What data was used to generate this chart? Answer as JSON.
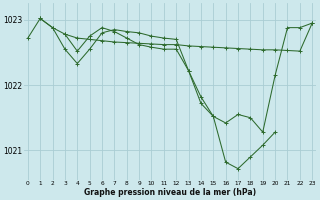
{
  "background_color": "#cde8ec",
  "grid_color": "#aacdd4",
  "line_color": "#2d6a2d",
  "xlabel": "Graphe pression niveau de la mer (hPa)",
  "ylim": [
    1020.55,
    1023.25
  ],
  "xlim": [
    -0.3,
    23.3
  ],
  "yticks": [
    1021,
    1022,
    1023
  ],
  "xticks": [
    0,
    1,
    2,
    3,
    4,
    5,
    6,
    7,
    8,
    9,
    10,
    11,
    12,
    13,
    14,
    15,
    16,
    17,
    18,
    19,
    20,
    21,
    22,
    23
  ],
  "line1_x": [
    0,
    1,
    2,
    3,
    4,
    5,
    6,
    7,
    8,
    9,
    10,
    11,
    12,
    13,
    14,
    15,
    16,
    17,
    18,
    19,
    20,
    21,
    22,
    23
  ],
  "line1_y": [
    1022.72,
    1023.02,
    1022.88,
    1022.78,
    1022.72,
    1022.7,
    1022.68,
    1022.66,
    1022.65,
    1022.64,
    1022.63,
    1022.62,
    1022.62,
    1022.6,
    1022.59,
    1022.58,
    1022.57,
    1022.56,
    1022.55,
    1022.54,
    1022.54,
    1022.53,
    1022.52,
    1022.95
  ],
  "line2_x": [
    1,
    2,
    3,
    4,
    5,
    6,
    7,
    8,
    9,
    10,
    11,
    12,
    13,
    14,
    15,
    16,
    17,
    18,
    19,
    20,
    21,
    22,
    23
  ],
  "line2_y": [
    1023.02,
    1022.88,
    1022.55,
    1022.33,
    1022.55,
    1022.8,
    1022.85,
    1022.82,
    1022.8,
    1022.75,
    1022.72,
    1022.7,
    1022.22,
    1021.72,
    1021.52,
    1021.42,
    1021.55,
    1021.5,
    1021.28,
    1022.15,
    1022.88,
    1022.88,
    1022.95
  ],
  "line3_x": [
    3,
    4,
    5,
    6,
    7,
    8,
    9,
    10,
    11,
    12,
    13,
    14,
    15,
    16,
    17,
    18,
    19,
    20
  ],
  "line3_y": [
    1022.78,
    1022.52,
    1022.75,
    1022.88,
    1022.82,
    1022.72,
    1022.62,
    1022.58,
    1022.55,
    1022.55,
    1022.22,
    1021.82,
    1021.52,
    1020.82,
    1020.72,
    1020.9,
    1021.08,
    1021.28
  ]
}
